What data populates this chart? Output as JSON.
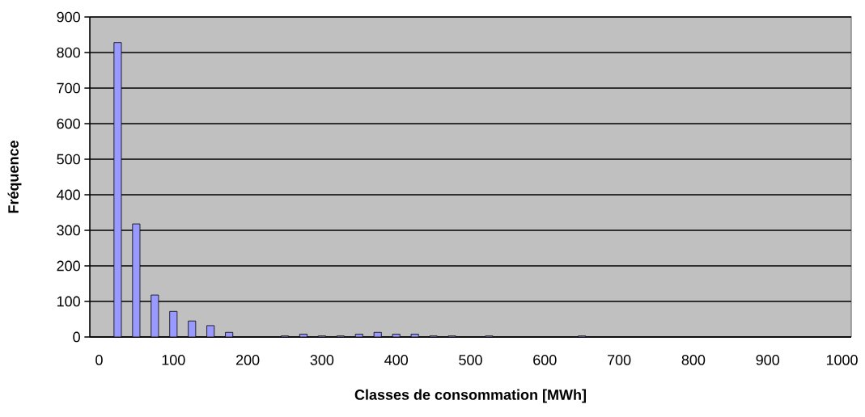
{
  "chart_data": {
    "type": "bar",
    "xlabel": "Classes de consommation [MWh]",
    "ylabel": "Fréquence",
    "categories": [
      "0",
      null,
      null,
      null,
      "100",
      null,
      null,
      null,
      "200",
      null,
      null,
      null,
      "300",
      null,
      null,
      null,
      "400",
      null,
      null,
      null,
      "500",
      null,
      null,
      null,
      "600",
      null,
      null,
      null,
      "700",
      null,
      null,
      null,
      "800",
      null,
      null,
      null,
      "900",
      null,
      null,
      null,
      "1000"
    ],
    "values": [
      0,
      828,
      318,
      118,
      72,
      45,
      32,
      13,
      0,
      0,
      3,
      8,
      3,
      3,
      8,
      13,
      8,
      8,
      3,
      3,
      0,
      3,
      0,
      0,
      0,
      0,
      3,
      0,
      0,
      0,
      0,
      0,
      0,
      0,
      0,
      0,
      0,
      0,
      0,
      0,
      0
    ],
    "color": "#9999ff",
    "ylim": [
      0,
      900
    ],
    "yticks": [
      0,
      100,
      200,
      300,
      400,
      500,
      600,
      700,
      800,
      900
    ],
    "grid": "y"
  }
}
